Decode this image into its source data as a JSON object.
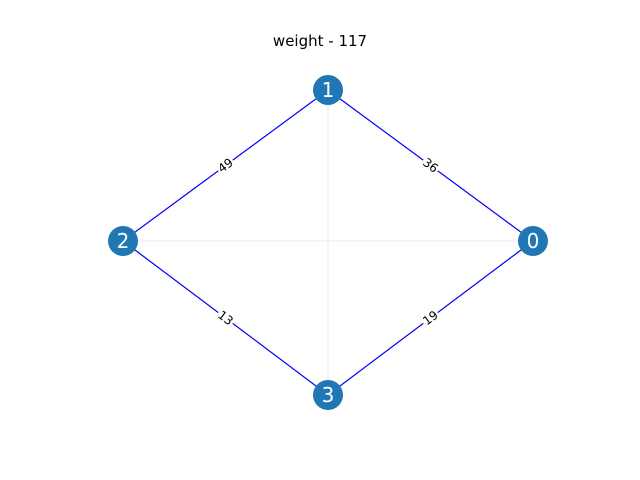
{
  "title": "weight - 117",
  "colors": {
    "node_fill": "#1f77b4",
    "node_label": "#ffffff",
    "edge": "#0000ff",
    "grid": "#e8e8e8",
    "edge_label_bg": "#ffffff"
  },
  "nodes": [
    {
      "id": "0",
      "label": "0"
    },
    {
      "id": "1",
      "label": "1"
    },
    {
      "id": "2",
      "label": "2"
    },
    {
      "id": "3",
      "label": "3"
    }
  ],
  "edges": [
    {
      "from": "1",
      "to": "2",
      "weight": "49"
    },
    {
      "from": "1",
      "to": "0",
      "weight": "36"
    },
    {
      "from": "2",
      "to": "3",
      "weight": "13"
    },
    {
      "from": "3",
      "to": "0",
      "weight": "19"
    }
  ]
}
